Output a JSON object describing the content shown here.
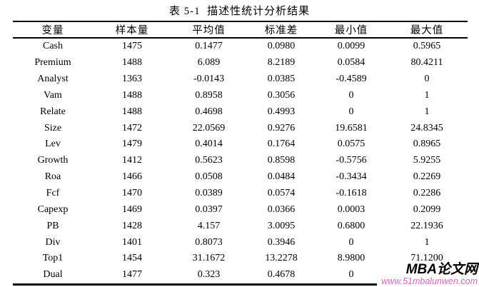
{
  "title": "表 5-1  描述性统计分析结果",
  "table": {
    "headers": [
      "变量",
      "样本量",
      "平均值",
      "标准差",
      "最小值",
      "最大值"
    ],
    "rows": [
      [
        "Cash",
        "1475",
        "0.1477",
        "0.0980",
        "0.0099",
        "0.5965"
      ],
      [
        "Premium",
        "1488",
        "6.089",
        "8.2189",
        "0.0584",
        "80.4211"
      ],
      [
        "Analyst",
        "1363",
        "-0.0143",
        "0.0385",
        "-0.4589",
        "0"
      ],
      [
        "Vam",
        "1488",
        "0.8958",
        "0.3056",
        "0",
        "1"
      ],
      [
        "Relate",
        "1488",
        "0.4698",
        "0.4993",
        "0",
        "1"
      ],
      [
        "Size",
        "1472",
        "22.0569",
        "0.9276",
        "19.6581",
        "24.8345"
      ],
      [
        "Lev",
        "1479",
        "0.4014",
        "0.1764",
        "0.0575",
        "0.8965"
      ],
      [
        "Growth",
        "1412",
        "0.5623",
        "0.8598",
        "-0.5756",
        "5.9255"
      ],
      [
        "Roa",
        "1466",
        "0.0508",
        "0.0484",
        "-0.3434",
        "0.2269"
      ],
      [
        "Fcf",
        "1470",
        "0.0389",
        "0.0574",
        "-0.1618",
        "0.2286"
      ],
      [
        "Capexp",
        "1469",
        "0.0397",
        "0.0366",
        "0.0003",
        "0.2099"
      ],
      [
        "PB",
        "1428",
        "4.157",
        "3.0095",
        "0.6800",
        "22.1936"
      ],
      [
        "Div",
        "1401",
        "0.8073",
        "0.3946",
        "0",
        "1"
      ],
      [
        "Top1",
        "1454",
        "31.1672",
        "13.2278",
        "8.9800",
        "71.1200"
      ],
      [
        "Dual",
        "1477",
        "0.323",
        "0.4678",
        "0",
        ""
      ]
    ]
  },
  "watermark": {
    "brand": "MBA论文网",
    "url": "www.51mbalunwen.com",
    "url_color": "#db66bd"
  }
}
